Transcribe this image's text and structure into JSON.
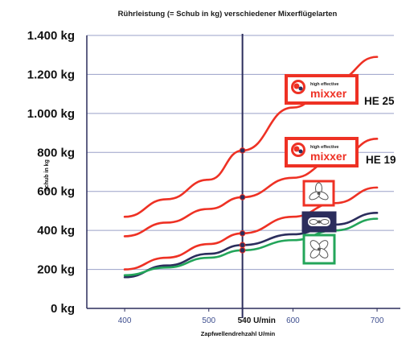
{
  "chart_data": {
    "type": "line",
    "title": "Rührleistung (= Schub in kg) verschiedener Mixerflügelarten",
    "xlabel": "Zapfwellendrehzahl U/min",
    "ylabel": "Schub in kg",
    "x_ticks": [
      "400",
      "500",
      "600",
      "700"
    ],
    "y_ticks": [
      "0 kg",
      "200 kg",
      "400 kg",
      "600 kg",
      "800 kg",
      "1.000 kg",
      "1.200 kg",
      "1.400 kg"
    ],
    "xlim": [
      355,
      720
    ],
    "ylim": [
      0,
      1400
    ],
    "grid": "horizontal",
    "reference_line": {
      "x": 540,
      "label": "540 U/min"
    },
    "series": [
      {
        "name": "HE 25",
        "color": "#ee3124",
        "x": [
          400,
          450,
          500,
          540,
          600,
          650,
          700
        ],
        "y": [
          470,
          560,
          660,
          810,
          1030,
          1170,
          1290
        ]
      },
      {
        "name": "HE 19",
        "color": "#ee3124",
        "x": [
          400,
          450,
          500,
          540,
          600,
          650,
          700
        ],
        "y": [
          370,
          440,
          510,
          570,
          670,
          760,
          870
        ]
      },
      {
        "color": "#ee3124",
        "x": [
          400,
          450,
          500,
          540,
          600,
          650,
          700
        ],
        "y": [
          200,
          260,
          330,
          385,
          470,
          540,
          620
        ]
      },
      {
        "color": "#2b2d5c",
        "x": [
          400,
          450,
          500,
          540,
          600,
          650,
          700
        ],
        "y": [
          160,
          220,
          280,
          325,
          380,
          430,
          490
        ]
      },
      {
        "color": "#23a55a",
        "x": [
          400,
          450,
          500,
          540,
          600,
          650,
          700
        ],
        "y": [
          170,
          210,
          260,
          298,
          350,
          400,
          460
        ]
      }
    ],
    "markers": [
      {
        "x": 540,
        "y": 810
      },
      {
        "x": 540,
        "y": 570
      },
      {
        "x": 540,
        "y": 385
      },
      {
        "x": 540,
        "y": 325
      },
      {
        "x": 540,
        "y": 298
      }
    ],
    "legend": [
      {
        "label": "HE 25",
        "logo_small": "high effective",
        "logo_big": "mixxer",
        "frame_color": "#ee3124",
        "icon": "mixxer-logo"
      },
      {
        "label": "HE 19",
        "logo_small": "high effective",
        "logo_big": "mixxer",
        "frame_color": "#ee3124",
        "icon": "mixxer-logo"
      },
      {
        "label": "",
        "frame_color": "#ee3124",
        "icon": "propeller-3-blade-icon"
      },
      {
        "label": "",
        "frame_color": "#2b2d5c",
        "icon": "propeller-flat-icon"
      },
      {
        "label": "",
        "frame_color": "#23a55a",
        "icon": "propeller-4-blade-icon"
      }
    ]
  }
}
